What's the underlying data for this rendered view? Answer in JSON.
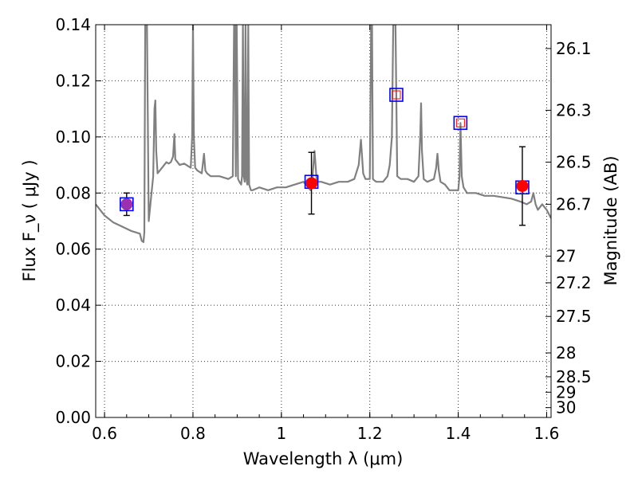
{
  "chart_data": {
    "type": "scatter",
    "title": "",
    "xlabel": "Wavelength  λ (μm)",
    "ylabel": "Flux  F_ν  ( μJy )",
    "y2label": "Magnitude (AB)",
    "xlim": [
      0.58,
      1.61
    ],
    "ylim": [
      0.0,
      0.14
    ],
    "grid": true,
    "x_ticks": [
      0.6,
      0.8,
      1.0,
      1.2,
      1.4,
      1.6
    ],
    "x_tick_labels": [
      "0.6",
      "0.8",
      "1",
      "1.2",
      "1.4",
      "1.6"
    ],
    "y_ticks": [
      0.0,
      0.02,
      0.04,
      0.06,
      0.08,
      0.1,
      0.12,
      0.14
    ],
    "y_tick_labels": [
      "0.00",
      "0.02",
      "0.04",
      "0.06",
      "0.08",
      "0.10",
      "0.12",
      "0.14"
    ],
    "y2_ticks": [
      {
        "flux": 0.1315,
        "label": "26.1"
      },
      {
        "flux": 0.1095,
        "label": "26.3"
      },
      {
        "flux": 0.091,
        "label": "26.5"
      },
      {
        "flux": 0.076,
        "label": "26.7"
      },
      {
        "flux": 0.0575,
        "label": "27"
      },
      {
        "flux": 0.048,
        "label": "27.2"
      },
      {
        "flux": 0.036,
        "label": "27.5"
      },
      {
        "flux": 0.023,
        "label": "28"
      },
      {
        "flux": 0.0145,
        "label": "28.5"
      },
      {
        "flux": 0.009,
        "label": "29"
      },
      {
        "flux": 0.0035,
        "label": "30"
      }
    ],
    "series": [
      {
        "kind": "model-spectrum",
        "color": "#808080",
        "x": [
          0.58,
          0.6,
          0.62,
          0.64,
          0.66,
          0.68,
          0.684,
          0.688,
          0.69,
          0.692,
          0.694,
          0.696,
          0.7,
          0.705,
          0.71,
          0.713,
          0.715,
          0.717,
          0.72,
          0.725,
          0.73,
          0.735,
          0.74,
          0.745,
          0.75,
          0.755,
          0.758,
          0.76,
          0.765,
          0.77,
          0.78,
          0.795,
          0.798,
          0.8,
          0.802,
          0.805,
          0.81,
          0.82,
          0.825,
          0.828,
          0.832,
          0.84,
          0.86,
          0.88,
          0.89,
          0.893,
          0.895,
          0.897,
          0.899,
          0.902,
          0.905,
          0.909,
          0.911,
          0.913,
          0.915,
          0.917,
          0.919,
          0.921,
          0.923,
          0.925,
          0.927,
          0.929,
          0.931,
          0.935,
          0.95,
          0.97,
          0.99,
          1.01,
          1.03,
          1.05,
          1.066,
          1.07,
          1.075,
          1.08,
          1.09,
          1.11,
          1.13,
          1.15,
          1.165,
          1.175,
          1.18,
          1.185,
          1.19,
          1.2,
          1.203,
          1.205,
          1.207,
          1.21,
          1.215,
          1.22,
          1.23,
          1.24,
          1.245,
          1.25,
          1.253,
          1.255,
          1.258,
          1.262,
          1.27,
          1.285,
          1.3,
          1.31,
          1.314,
          1.316,
          1.318,
          1.322,
          1.33,
          1.345,
          1.35,
          1.353,
          1.356,
          1.36,
          1.37,
          1.38,
          1.395,
          1.4,
          1.403,
          1.405,
          1.408,
          1.412,
          1.42,
          1.44,
          1.46,
          1.48,
          1.5,
          1.52,
          1.54,
          1.555,
          1.565,
          1.57,
          1.575,
          1.58,
          1.59,
          1.6,
          1.61
        ],
        "y": [
          0.076,
          0.072,
          0.0695,
          0.068,
          0.0665,
          0.0655,
          0.063,
          0.0625,
          0.066,
          0.14,
          0.14,
          0.14,
          0.07,
          0.078,
          0.086,
          0.11,
          0.113,
          0.095,
          0.087,
          0.088,
          0.089,
          0.09,
          0.091,
          0.0905,
          0.091,
          0.093,
          0.101,
          0.092,
          0.091,
          0.09,
          0.0905,
          0.089,
          0.1,
          0.14,
          0.1,
          0.089,
          0.088,
          0.087,
          0.094,
          0.088,
          0.087,
          0.086,
          0.086,
          0.085,
          0.086,
          0.14,
          0.14,
          0.086,
          0.14,
          0.085,
          0.084,
          0.083,
          0.086,
          0.14,
          0.086,
          0.084,
          0.14,
          0.085,
          0.083,
          0.14,
          0.083,
          0.082,
          0.081,
          0.081,
          0.082,
          0.081,
          0.082,
          0.082,
          0.083,
          0.084,
          0.081,
          0.085,
          0.095,
          0.084,
          0.084,
          0.083,
          0.084,
          0.084,
          0.085,
          0.09,
          0.099,
          0.087,
          0.085,
          0.085,
          0.14,
          0.14,
          0.085,
          0.0845,
          0.084,
          0.084,
          0.084,
          0.086,
          0.09,
          0.1,
          0.14,
          0.14,
          0.14,
          0.086,
          0.085,
          0.085,
          0.084,
          0.086,
          0.1,
          0.112,
          0.095,
          0.085,
          0.084,
          0.085,
          0.089,
          0.094,
          0.088,
          0.084,
          0.083,
          0.081,
          0.081,
          0.081,
          0.086,
          0.105,
          0.086,
          0.082,
          0.08,
          0.08,
          0.079,
          0.079,
          0.0785,
          0.078,
          0.077,
          0.076,
          0.077,
          0.08,
          0.076,
          0.074,
          0.076,
          0.074,
          0.071
        ]
      },
      {
        "kind": "model-photometry",
        "marker": "square",
        "color": "#0000ff",
        "x": [
          0.65,
          1.068,
          1.26,
          1.405,
          1.545
        ],
        "y": [
          0.076,
          0.084,
          0.115,
          0.105,
          0.082
        ]
      },
      {
        "kind": "observed-photometry",
        "marker": "circle",
        "color": "#ff0000",
        "x": [
          0.65,
          1.068,
          1.545
        ],
        "y": [
          0.076,
          0.0835,
          0.0825
        ],
        "yerr": [
          0.004,
          0.011,
          0.014
        ]
      },
      {
        "kind": "observed-limits",
        "marker": "small-square-outline",
        "color": "#ff0000",
        "x": [
          1.26,
          1.405
        ],
        "y": [
          0.115,
          0.105
        ]
      }
    ]
  }
}
